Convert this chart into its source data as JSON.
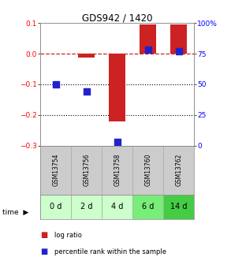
{
  "title": "GDS942 / 1420",
  "samples": [
    "GSM13754",
    "GSM13756",
    "GSM13758",
    "GSM13760",
    "GSM13762"
  ],
  "time_labels": [
    "0 d",
    "2 d",
    "4 d",
    "6 d",
    "14 d"
  ],
  "log_ratio": [
    0.0,
    -0.012,
    -0.22,
    0.095,
    0.095
  ],
  "percentile_rank": [
    50,
    44,
    3,
    78,
    77
  ],
  "left_ylim": [
    -0.3,
    0.1
  ],
  "left_yticks": [
    -0.3,
    -0.2,
    -0.1,
    0.0,
    0.1
  ],
  "right_ylim": [
    0,
    100
  ],
  "right_yticks": [
    0,
    25,
    50,
    75,
    100
  ],
  "right_yticklabels": [
    "0",
    "25",
    "50",
    "75",
    "100%"
  ],
  "bar_color": "#cc2222",
  "dot_color": "#2222cc",
  "dashed_line_color": "#cc2222",
  "grid_color": "#000000",
  "bg_color": "#ffffff",
  "sample_bg": "#cccccc",
  "time_bg_colors": [
    "#ccffcc",
    "#ccffcc",
    "#ccffcc",
    "#77ee77",
    "#44cc44"
  ],
  "bar_width": 0.55,
  "dot_size": 35
}
